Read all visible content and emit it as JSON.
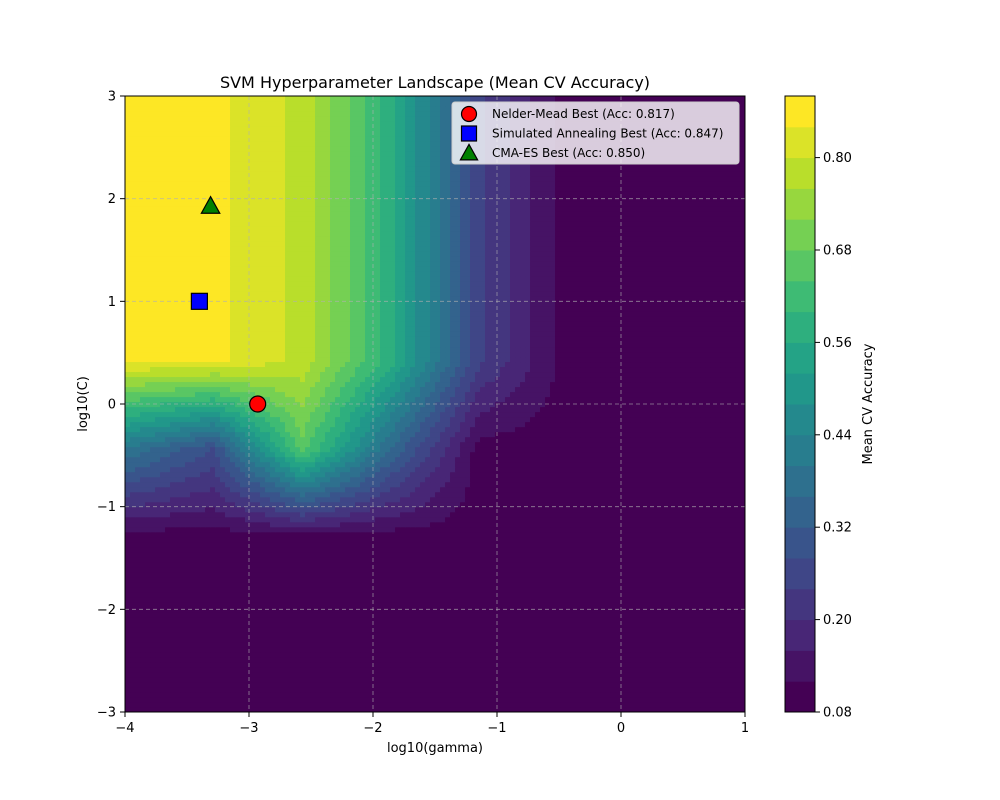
{
  "chart_data": {
    "type": "heatmap",
    "title": "SVM Hyperparameter Landscape (Mean CV Accuracy)",
    "xlabel": "log10(gamma)",
    "ylabel": "log10(C)",
    "xlim": [
      -4,
      1
    ],
    "ylim": [
      -3,
      3
    ],
    "x_ticks": [
      -4,
      -3,
      -2,
      -1,
      0,
      1
    ],
    "x_tick_labels": [
      "−4",
      "−3",
      "−2",
      "−1",
      "0",
      "1"
    ],
    "y_ticks": [
      -3,
      -2,
      -1,
      0,
      1,
      2,
      3
    ],
    "y_tick_labels": [
      "−3",
      "−2",
      "−1",
      "0",
      "1",
      "2",
      "3"
    ],
    "grid": true,
    "grid_style": "dashed",
    "colormap": "viridis",
    "contour_levels": [
      0.08,
      0.12,
      0.16,
      0.2,
      0.24,
      0.28,
      0.32,
      0.36,
      0.4,
      0.44,
      0.48,
      0.52,
      0.56,
      0.6,
      0.64,
      0.68,
      0.72,
      0.76,
      0.8,
      0.84,
      0.88
    ],
    "grid_x": [
      -4.0,
      -3.29,
      -2.57,
      -1.86,
      -1.14,
      -0.43,
      0.29,
      1.0
    ],
    "grid_y": [
      -3.0,
      -2.14,
      -1.29,
      -0.43,
      0.43,
      1.29,
      2.14,
      3.0
    ],
    "z": [
      [
        0.1,
        0.1,
        0.1,
        0.1,
        0.1,
        0.1,
        0.1,
        0.1
      ],
      [
        0.1,
        0.1,
        0.1,
        0.1,
        0.1,
        0.1,
        0.1,
        0.1
      ],
      [
        0.1,
        0.1,
        0.1,
        0.1,
        0.1,
        0.1,
        0.1,
        0.1
      ],
      [
        0.4,
        0.28,
        0.66,
        0.36,
        0.1,
        0.1,
        0.1,
        0.1
      ],
      [
        0.85,
        0.85,
        0.79,
        0.58,
        0.25,
        0.1,
        0.1,
        0.1
      ],
      [
        0.85,
        0.85,
        0.79,
        0.58,
        0.25,
        0.1,
        0.1,
        0.1
      ],
      [
        0.85,
        0.85,
        0.79,
        0.58,
        0.25,
        0.1,
        0.1,
        0.1
      ],
      [
        0.85,
        0.85,
        0.79,
        0.58,
        0.25,
        0.1,
        0.1,
        0.1
      ]
    ],
    "colorbar": {
      "label": "Mean CV Accuracy",
      "range": [
        0.08,
        0.88
      ],
      "ticks": [
        0.08,
        0.2,
        0.32,
        0.44,
        0.56,
        0.68,
        0.8
      ],
      "tick_labels": [
        "0.08",
        "0.20",
        "0.32",
        "0.44",
        "0.56",
        "0.68",
        "0.80"
      ]
    },
    "series": [
      {
        "name": "Nelder-Mead Best (Acc: 0.817)",
        "marker": "circle",
        "color": "#ff0000",
        "x": -2.93,
        "y": 0.0
      },
      {
        "name": "Simulated Annealing Best (Acc: 0.847)",
        "marker": "square",
        "color": "#0000ff",
        "x": -3.4,
        "y": 1.0
      },
      {
        "name": "CMA-ES Best (Acc: 0.850)",
        "marker": "triangle",
        "color": "#008000",
        "x": -3.31,
        "y": 1.93
      }
    ],
    "legend_position": "top-right"
  }
}
